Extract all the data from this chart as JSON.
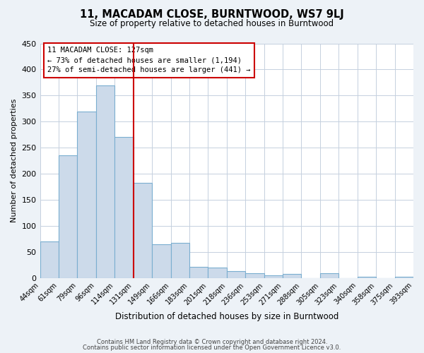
{
  "title": "11, MACADAM CLOSE, BURNTWOOD, WS7 9LJ",
  "subtitle": "Size of property relative to detached houses in Burntwood",
  "xlabel": "Distribution of detached houses by size in Burntwood",
  "ylabel": "Number of detached properties",
  "bin_labels": [
    "44sqm",
    "61sqm",
    "79sqm",
    "96sqm",
    "114sqm",
    "131sqm",
    "149sqm",
    "166sqm",
    "183sqm",
    "201sqm",
    "218sqm",
    "236sqm",
    "253sqm",
    "271sqm",
    "288sqm",
    "305sqm",
    "323sqm",
    "340sqm",
    "358sqm",
    "375sqm",
    "393sqm"
  ],
  "bar_heights": [
    70,
    235,
    320,
    370,
    270,
    183,
    65,
    68,
    22,
    20,
    13,
    10,
    5,
    8,
    0,
    10,
    0,
    2,
    0,
    3
  ],
  "bar_color": "#ccdaea",
  "bar_edgecolor": "#7aaed0",
  "vline_color": "#cc0000",
  "annotation_title": "11 MACADAM CLOSE: 127sqm",
  "annotation_line1": "← 73% of detached houses are smaller (1,194)",
  "annotation_line2": "27% of semi-detached houses are larger (441) →",
  "annotation_box_edgecolor": "#cc0000",
  "ylim": [
    0,
    450
  ],
  "yticks": [
    0,
    50,
    100,
    150,
    200,
    250,
    300,
    350,
    400,
    450
  ],
  "footer_line1": "Contains HM Land Registry data © Crown copyright and database right 2024.",
  "footer_line2": "Contains public sector information licensed under the Open Government Licence v3.0.",
  "background_color": "#edf2f7",
  "plot_background": "#ffffff",
  "grid_color": "#c5d0de"
}
